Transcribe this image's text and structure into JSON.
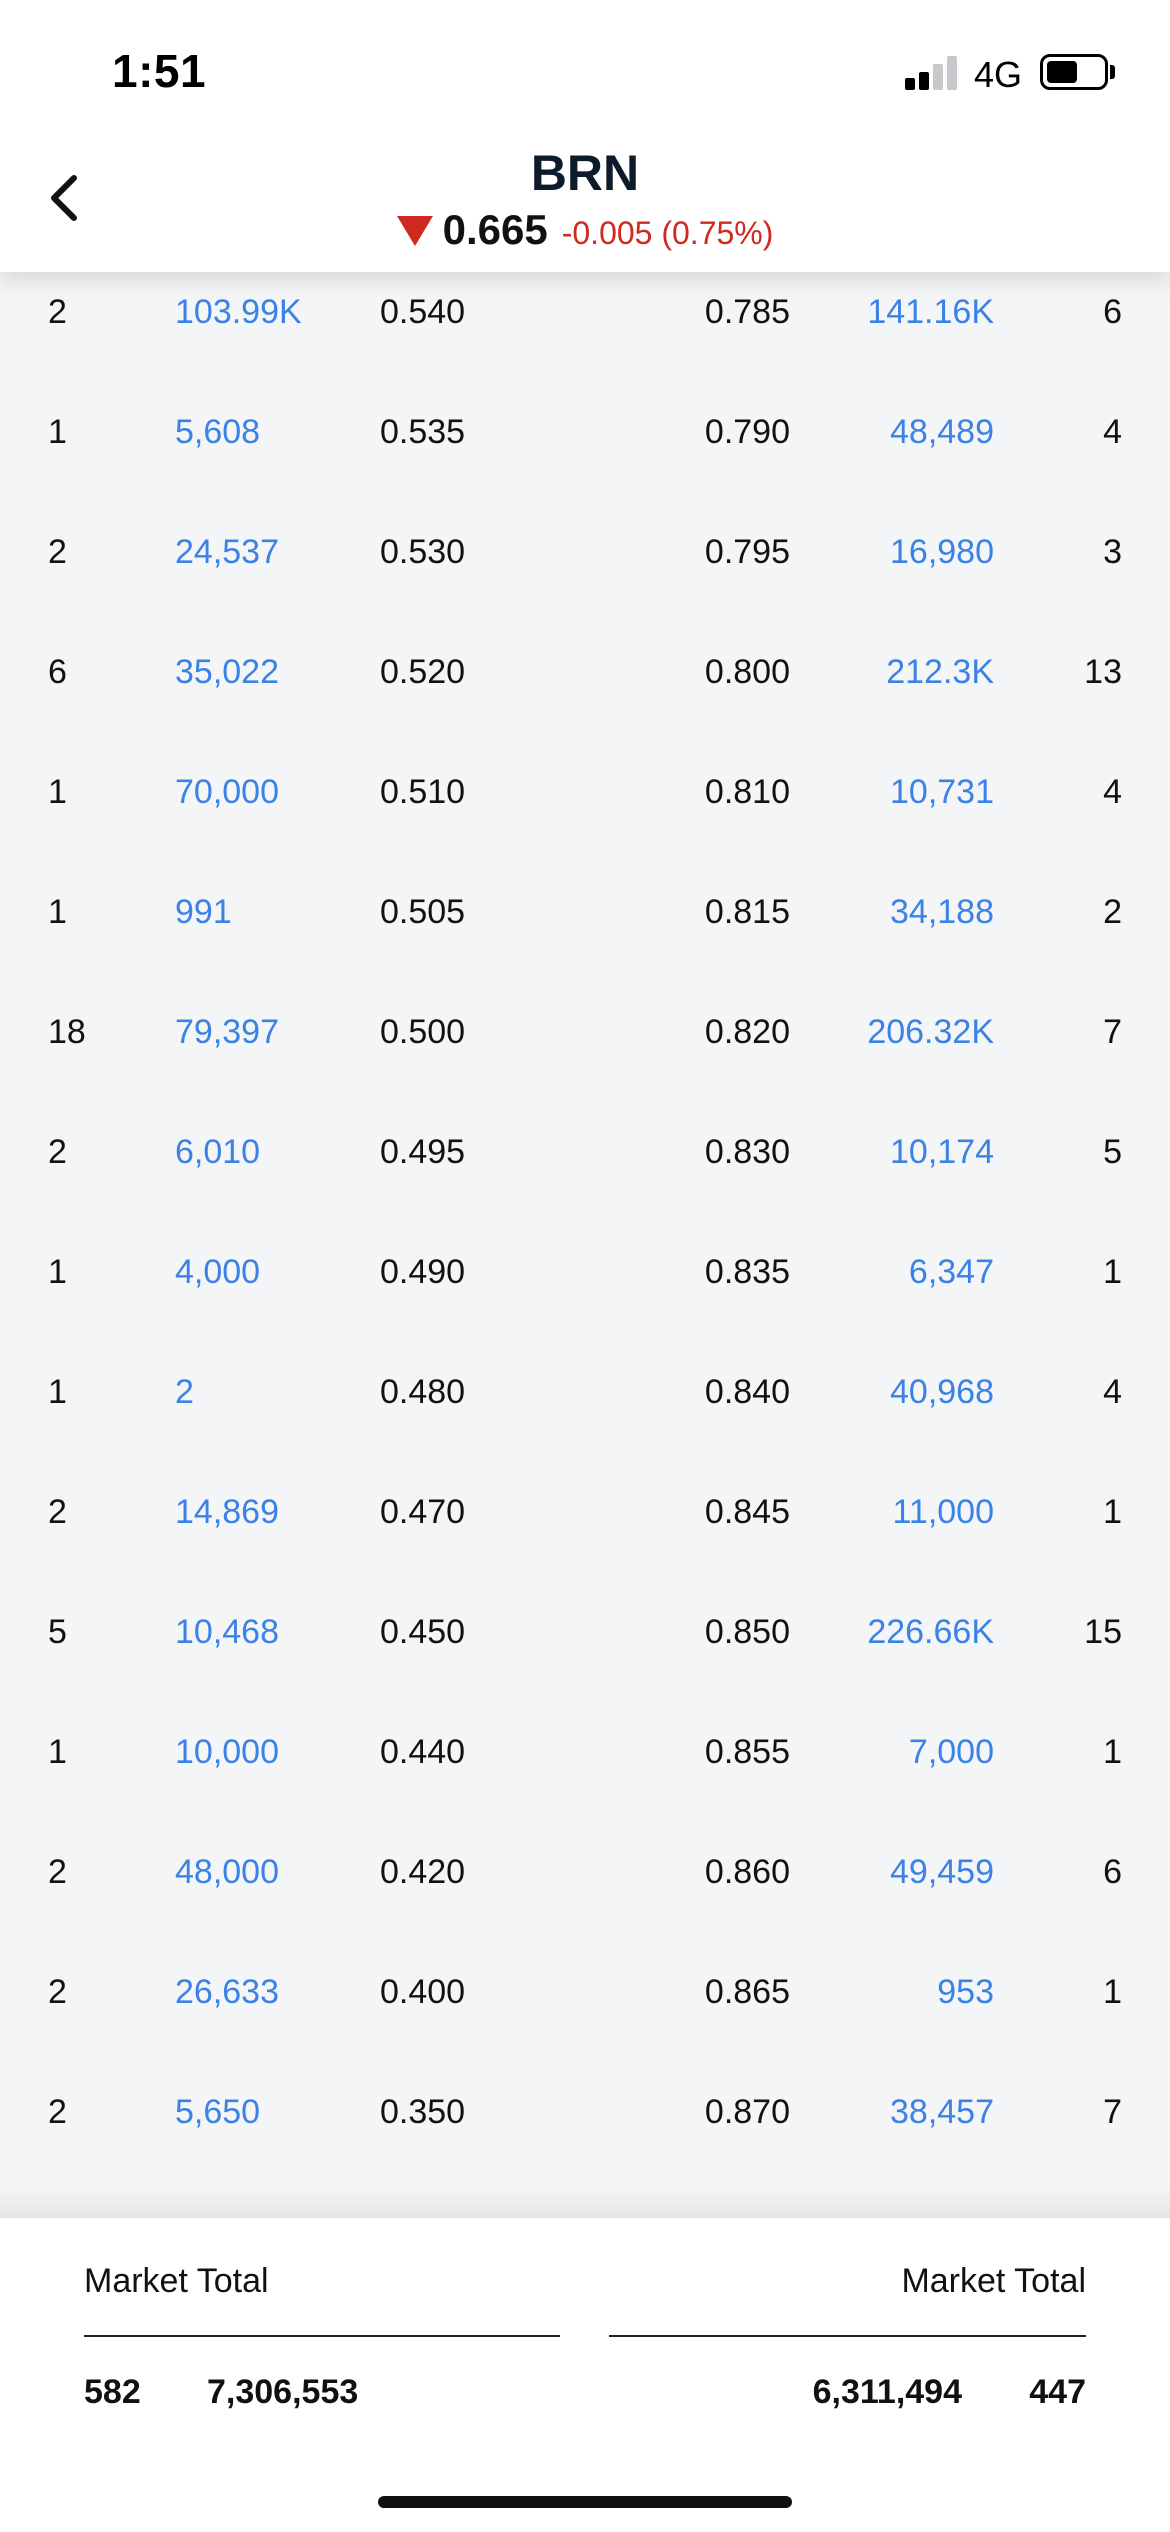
{
  "status_bar": {
    "time": "1:51",
    "network": "4G",
    "battery_level": 0.55
  },
  "header": {
    "ticker": "BRN",
    "price": "0.665",
    "change": "-0.005 (0.75%)",
    "direction_icon": "down-triangle-icon",
    "change_color": "#d0291f"
  },
  "colors": {
    "volume_text": "#3b82e6",
    "book_background": "#f4f5f7"
  },
  "order_book": {
    "rows": [
      {
        "bid_count": "2",
        "bid_volume": "103.99K",
        "bid_price": "0.540",
        "ask_price": "0.785",
        "ask_volume": "141.16K",
        "ask_count": "6"
      },
      {
        "bid_count": "1",
        "bid_volume": "5,608",
        "bid_price": "0.535",
        "ask_price": "0.790",
        "ask_volume": "48,489",
        "ask_count": "4"
      },
      {
        "bid_count": "2",
        "bid_volume": "24,537",
        "bid_price": "0.530",
        "ask_price": "0.795",
        "ask_volume": "16,980",
        "ask_count": "3"
      },
      {
        "bid_count": "6",
        "bid_volume": "35,022",
        "bid_price": "0.520",
        "ask_price": "0.800",
        "ask_volume": "212.3K",
        "ask_count": "13"
      },
      {
        "bid_count": "1",
        "bid_volume": "70,000",
        "bid_price": "0.510",
        "ask_price": "0.810",
        "ask_volume": "10,731",
        "ask_count": "4"
      },
      {
        "bid_count": "1",
        "bid_volume": "991",
        "bid_price": "0.505",
        "ask_price": "0.815",
        "ask_volume": "34,188",
        "ask_count": "2"
      },
      {
        "bid_count": "18",
        "bid_volume": "79,397",
        "bid_price": "0.500",
        "ask_price": "0.820",
        "ask_volume": "206.32K",
        "ask_count": "7"
      },
      {
        "bid_count": "2",
        "bid_volume": "6,010",
        "bid_price": "0.495",
        "ask_price": "0.830",
        "ask_volume": "10,174",
        "ask_count": "5"
      },
      {
        "bid_count": "1",
        "bid_volume": "4,000",
        "bid_price": "0.490",
        "ask_price": "0.835",
        "ask_volume": "6,347",
        "ask_count": "1"
      },
      {
        "bid_count": "1",
        "bid_volume": "2",
        "bid_price": "0.480",
        "ask_price": "0.840",
        "ask_volume": "40,968",
        "ask_count": "4"
      },
      {
        "bid_count": "2",
        "bid_volume": "14,869",
        "bid_price": "0.470",
        "ask_price": "0.845",
        "ask_volume": "11,000",
        "ask_count": "1"
      },
      {
        "bid_count": "5",
        "bid_volume": "10,468",
        "bid_price": "0.450",
        "ask_price": "0.850",
        "ask_volume": "226.66K",
        "ask_count": "15"
      },
      {
        "bid_count": "1",
        "bid_volume": "10,000",
        "bid_price": "0.440",
        "ask_price": "0.855",
        "ask_volume": "7,000",
        "ask_count": "1"
      },
      {
        "bid_count": "2",
        "bid_volume": "48,000",
        "bid_price": "0.420",
        "ask_price": "0.860",
        "ask_volume": "49,459",
        "ask_count": "6"
      },
      {
        "bid_count": "2",
        "bid_volume": "26,633",
        "bid_price": "0.400",
        "ask_price": "0.865",
        "ask_volume": "953",
        "ask_count": "1"
      },
      {
        "bid_count": "2",
        "bid_volume": "5,650",
        "bid_price": "0.350",
        "ask_price": "0.870",
        "ask_volume": "38,457",
        "ask_count": "7"
      }
    ]
  },
  "footer": {
    "bid_total_label": "Market Total",
    "ask_total_label": "Market Total",
    "bid_total_count": "582",
    "bid_total_volume": "7,306,553",
    "ask_total_volume": "6,311,494",
    "ask_total_count": "447"
  }
}
